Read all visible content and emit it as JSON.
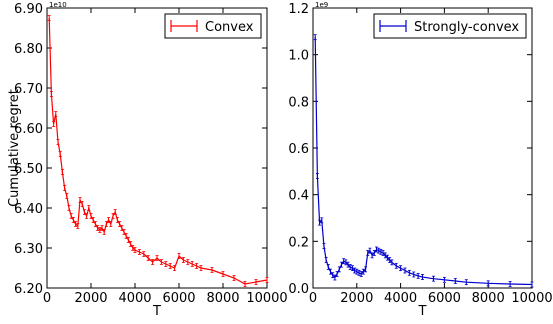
{
  "chart_data": [
    {
      "type": "line",
      "ylabel": "Cumulative regret",
      "xlabel": "T",
      "exponent_label": "1e10",
      "xlim": [
        0,
        10000
      ],
      "ylim": [
        6.2,
        6.9
      ],
      "xticks": [
        0,
        2000,
        4000,
        6000,
        8000,
        10000
      ],
      "yticks": [
        6.2,
        6.3,
        6.4,
        6.5,
        6.6,
        6.7,
        6.8,
        6.9
      ],
      "grid": false,
      "legend_position": "top-right",
      "series": [
        {
          "name": "Convex",
          "color": "#ff0000",
          "error_bars": true,
          "x": [
            100,
            200,
            300,
            400,
            500,
            600,
            700,
            800,
            900,
            1000,
            1100,
            1200,
            1300,
            1400,
            1500,
            1600,
            1700,
            1800,
            1900,
            2000,
            2100,
            2200,
            2300,
            2400,
            2500,
            2600,
            2700,
            2800,
            2900,
            3000,
            3100,
            3200,
            3300,
            3400,
            3500,
            3600,
            3700,
            3800,
            3900,
            4000,
            4200,
            4400,
            4600,
            4800,
            5000,
            5200,
            5400,
            5600,
            5800,
            6000,
            6200,
            6400,
            6600,
            6800,
            7000,
            7500,
            8000,
            8500,
            9000,
            9500,
            10000
          ],
          "values": [
            6.875,
            6.685,
            6.61,
            6.635,
            6.565,
            6.535,
            6.49,
            6.45,
            6.43,
            6.4,
            6.38,
            6.37,
            6.36,
            6.355,
            6.42,
            6.41,
            6.39,
            6.38,
            6.4,
            6.38,
            6.37,
            6.36,
            6.35,
            6.345,
            6.35,
            6.34,
            6.36,
            6.37,
            6.36,
            6.38,
            6.39,
            6.37,
            6.36,
            6.35,
            6.34,
            6.33,
            6.32,
            6.31,
            6.3,
            6.295,
            6.29,
            6.285,
            6.275,
            6.265,
            6.275,
            6.265,
            6.26,
            6.255,
            6.25,
            6.28,
            6.27,
            6.265,
            6.26,
            6.255,
            6.25,
            6.245,
            6.235,
            6.225,
            6.21,
            6.215,
            6.22
          ]
        }
      ]
    },
    {
      "type": "line",
      "ylabel": "",
      "xlabel": "T",
      "exponent_label": "1e9",
      "xlim": [
        0,
        10000
      ],
      "ylim": [
        0.0,
        1.2
      ],
      "xticks": [
        0,
        2000,
        4000,
        6000,
        8000,
        10000
      ],
      "yticks": [
        0.0,
        0.2,
        0.4,
        0.6,
        0.8,
        1.0,
        1.2
      ],
      "grid": false,
      "legend_position": "top-right",
      "series": [
        {
          "name": "Strongly-convex",
          "color": "#0000cc",
          "error_bars": true,
          "x": [
            100,
            200,
            300,
            400,
            500,
            600,
            700,
            800,
            900,
            1000,
            1100,
            1200,
            1300,
            1400,
            1500,
            1600,
            1700,
            1800,
            1900,
            2000,
            2100,
            2200,
            2300,
            2400,
            2500,
            2600,
            2700,
            2800,
            2900,
            3000,
            3100,
            3200,
            3300,
            3400,
            3500,
            3600,
            3800,
            4000,
            4200,
            4400,
            4600,
            4800,
            5000,
            5500,
            6000,
            6500,
            7000,
            8000,
            9000,
            10000
          ],
          "values": [
            1.075,
            0.48,
            0.28,
            0.29,
            0.18,
            0.12,
            0.09,
            0.07,
            0.055,
            0.045,
            0.06,
            0.08,
            0.1,
            0.115,
            0.11,
            0.1,
            0.09,
            0.085,
            0.075,
            0.07,
            0.065,
            0.06,
            0.07,
            0.08,
            0.15,
            0.16,
            0.14,
            0.15,
            0.165,
            0.16,
            0.155,
            0.15,
            0.14,
            0.13,
            0.12,
            0.11,
            0.095,
            0.085,
            0.075,
            0.065,
            0.058,
            0.052,
            0.047,
            0.04,
            0.035,
            0.03,
            0.025,
            0.02,
            0.017,
            0.015
          ]
        }
      ]
    }
  ]
}
